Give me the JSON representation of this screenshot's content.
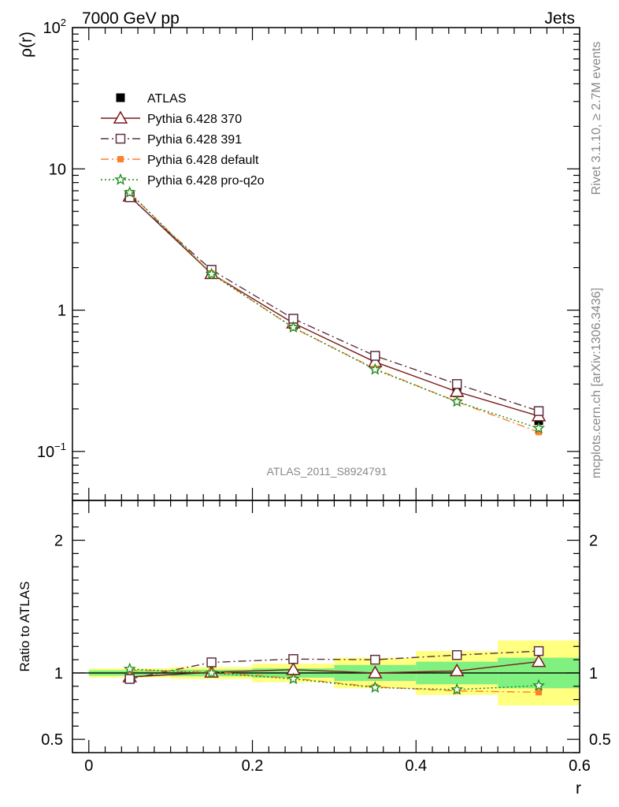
{
  "header": {
    "left": "7000 GeV pp",
    "right": "Jets"
  },
  "side_labels": {
    "rivet": "Rivet 3.1.10, ≥ 2.7M events",
    "mcplots": "mcplots.cern.ch [arXiv:1306.3436]"
  },
  "analysis_tag": "ATLAS_2011_S8924791",
  "chart_data": [
    {
      "panel": "main",
      "type": "line",
      "ylabel": "ρ(r)",
      "xlabel": "",
      "yscale": "log",
      "xlim": [
        -0.02,
        0.6
      ],
      "ylim": [
        0.045,
        100
      ],
      "yticks": [
        {
          "value": 100,
          "label": "10",
          "exp": "2"
        },
        {
          "value": 10,
          "label": "10",
          "exp": ""
        },
        {
          "value": 1,
          "label": "1",
          "exp": ""
        },
        {
          "value": 0.1,
          "label": "10",
          "exp": "−1"
        }
      ],
      "x": [
        0.05,
        0.15,
        0.25,
        0.35,
        0.45,
        0.55
      ],
      "legend_position": "top-left",
      "series": [
        {
          "name": "ATLAS",
          "style": "data",
          "color": "#000000",
          "marker": "filled-square",
          "values": [
            6.6,
            1.8,
            0.79,
            0.43,
            0.26,
            0.165
          ],
          "errors": [
            0.2,
            0.05,
            0.02,
            0.015,
            0.015,
            0.015
          ]
        },
        {
          "name": "Pythia 6.428 370",
          "color": "#7a1a1a",
          "marker": "open-triangle",
          "dash": "solid",
          "values": [
            6.4,
            1.81,
            0.81,
            0.43,
            0.265,
            0.178
          ]
        },
        {
          "name": "Pythia 6.428 391",
          "color": "#5e2e3e",
          "marker": "open-square",
          "dash": "dashdot",
          "values": [
            6.3,
            1.93,
            0.87,
            0.475,
            0.3,
            0.193
          ]
        },
        {
          "name": "Pythia 6.428 default",
          "color": "#ff7f2a",
          "marker": "filled-square-small",
          "dash": "dashdot",
          "values": [
            6.75,
            1.82,
            0.75,
            0.385,
            0.225,
            0.137
          ]
        },
        {
          "name": "Pythia 6.428 pro-q2o",
          "color": "#1a8a1a",
          "marker": "star",
          "dash": "dotted",
          "values": [
            6.8,
            1.8,
            0.755,
            0.38,
            0.225,
            0.146
          ]
        }
      ]
    },
    {
      "panel": "ratio",
      "type": "line",
      "ylabel": "Ratio to ATLAS",
      "xlabel": "r",
      "ylim": [
        0.4,
        2.3
      ],
      "yticks": [
        0.5,
        1,
        2
      ],
      "ytick_labels": [
        "0.5",
        "1",
        "2"
      ],
      "xticks": [
        0,
        0.2,
        0.4,
        0.6
      ],
      "xtick_labels": [
        "0",
        "0.2",
        "0.4",
        "0.6"
      ],
      "x": [
        0.05,
        0.15,
        0.25,
        0.35,
        0.45,
        0.55
      ],
      "bin_edges": [
        0.0,
        0.1,
        0.2,
        0.3,
        0.4,
        0.5,
        0.6
      ],
      "band_yellow": [
        [
          0.965,
          1.035
        ],
        [
          0.955,
          1.045
        ],
        [
          0.93,
          1.07
        ],
        [
          0.885,
          1.115
        ],
        [
          0.835,
          1.165
        ],
        [
          0.755,
          1.245
        ]
      ],
      "band_green": [
        [
          0.98,
          1.02
        ],
        [
          0.975,
          1.025
        ],
        [
          0.965,
          1.035
        ],
        [
          0.94,
          1.06
        ],
        [
          0.915,
          1.085
        ],
        [
          0.885,
          1.115
        ]
      ],
      "series": [
        {
          "name": "Pythia 6.428 370",
          "color": "#7a1a1a",
          "marker": "open-triangle",
          "dash": "solid",
          "values": [
            0.97,
            1.005,
            1.025,
            1.0,
            1.015,
            1.085
          ]
        },
        {
          "name": "Pythia 6.428 391",
          "color": "#5e2e3e",
          "marker": "open-square",
          "dash": "dashdot",
          "values": [
            0.955,
            1.08,
            1.105,
            1.1,
            1.135,
            1.165
          ]
        },
        {
          "name": "Pythia 6.428 default",
          "color": "#ff7f2a",
          "marker": "filled-square-small",
          "dash": "dashdot",
          "values": [
            1.02,
            1.01,
            0.96,
            0.895,
            0.865,
            0.855
          ]
        },
        {
          "name": "Pythia 6.428 pro-q2o",
          "color": "#1a8a1a",
          "marker": "star",
          "dash": "dotted",
          "values": [
            1.03,
            1.0,
            0.955,
            0.89,
            0.875,
            0.905
          ]
        }
      ]
    }
  ]
}
